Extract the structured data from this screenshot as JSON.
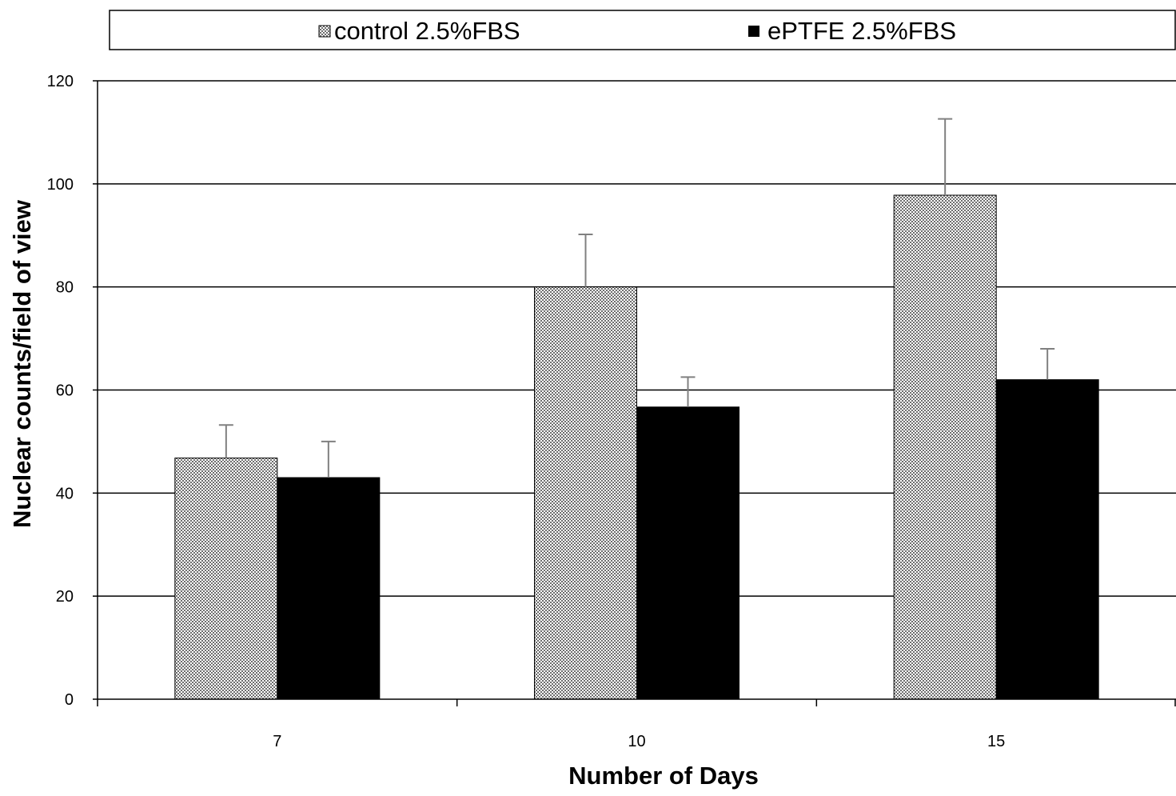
{
  "chart_data": {
    "type": "bar",
    "categories": [
      "7",
      "10",
      "15"
    ],
    "series": [
      {
        "name": "control 2.5%FBS",
        "values": [
          46.8,
          80.0,
          97.8
        ],
        "errors": [
          6.4,
          10.2,
          14.8
        ],
        "color": "#d8d8d8",
        "pattern": "crosshatch"
      },
      {
        "name": "ePTFE 2.5%FBS",
        "values": [
          43.0,
          56.7,
          62.0
        ],
        "errors": [
          7.0,
          5.8,
          6.0
        ],
        "color": "#000000",
        "pattern": "solid"
      }
    ],
    "xlabel": "Number of Days",
    "ylabel": "Nuclear counts/field of view",
    "ylim": [
      0,
      120
    ],
    "yticks": [
      0,
      20,
      40,
      60,
      80,
      100,
      120
    ],
    "grid": true,
    "legend_position": "top"
  }
}
